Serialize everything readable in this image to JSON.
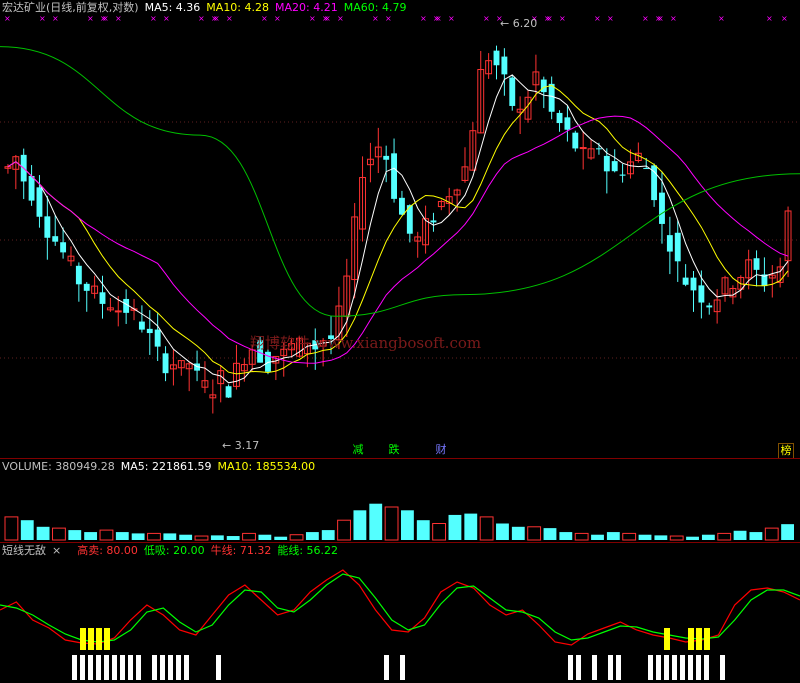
{
  "main_header": {
    "title": "宏达矿业(日线,前复权,对数)",
    "ma5_label": "MA5: 4.36",
    "ma10_label": "MA10: 4.28",
    "ma20_label": "MA20: 4.21",
    "ma60_label": "MA60: 4.79"
  },
  "vol_header": {
    "title": "VOLUME: 380949.28",
    "ma5_label": "MA5: 221861.59",
    "ma10_label": "MA10: 185534.00"
  },
  "ind_header": {
    "title": "短线无敌",
    "close_glyph": "×",
    "high_label": "高卖: 80.00",
    "low_label": "低吸: 20.00",
    "bull_label": "牛线: 71.32",
    "energy_label": "能线: 56.22"
  },
  "annotations": {
    "high": "6.20",
    "low": "3.17",
    "watermark": "翔博软件  www.xiangbosoft.com"
  },
  "tags": [
    {
      "text": "减",
      "color": "#00ff00"
    },
    {
      "text": "跌",
      "color": "#00ff00"
    },
    {
      "text": "财",
      "color": "#7777ff"
    },
    {
      "text": "榜",
      "color": "#ffff00"
    }
  ],
  "colors": {
    "up": "#ff3232",
    "down": "#54ffff",
    "ma5": "#ffffff",
    "ma10": "#ffff00",
    "ma20": "#ff00ff",
    "ma60": "#00c000",
    "bull": "#ff0000",
    "energy": "#00ff00",
    "high_signal": "#ffff00",
    "low_signal": "#ffffff"
  },
  "chart_data": {
    "type": "candlestick",
    "price_axis": {
      "min": 3.0,
      "max": 6.4,
      "scale": "log"
    },
    "price_series": [
      4.9,
      5.0,
      4.8,
      4.7,
      4.55,
      4.4,
      4.3,
      4.2,
      4.1,
      4.0,
      3.95,
      3.9,
      3.85,
      3.85,
      3.8,
      3.8,
      3.75,
      3.7,
      3.6,
      3.5,
      3.45,
      3.45,
      3.4,
      3.45,
      3.35,
      3.3,
      3.3,
      3.35,
      3.3,
      3.4,
      3.5,
      3.55,
      3.5,
      3.45,
      3.5,
      3.5,
      3.55,
      3.55,
      3.6,
      3.55,
      3.6,
      3.6,
      3.75,
      4.0,
      4.4,
      4.9,
      5.0,
      5.1,
      5.0,
      4.7,
      4.5,
      4.35,
      4.3,
      4.4,
      4.5,
      4.6,
      4.7,
      4.8,
      4.9,
      5.3,
      5.8,
      6.0,
      5.9,
      5.7,
      5.5,
      5.4,
      5.6,
      5.8,
      5.6,
      5.4,
      5.3,
      5.2,
      5.1,
      5.0,
      5.0,
      5.1,
      4.9,
      4.85,
      4.9,
      4.95,
      5.0,
      4.9,
      4.7,
      4.4,
      4.3,
      4.1,
      4.0,
      3.95,
      3.9,
      3.85,
      3.9,
      3.95,
      4.0,
      4.05,
      4.1,
      4.05,
      4.0,
      4.05,
      4.1,
      4.5
    ],
    "ma60_series": [
      6.1,
      5.2,
      3.75,
      3.9,
      4.85
    ],
    "ma60_at": [
      0,
      0.25,
      0.42,
      0.58,
      1.0
    ],
    "volume_series": [
      0.35,
      0.3,
      0.2,
      0.18,
      0.15,
      0.12,
      0.15,
      0.12,
      0.1,
      0.1,
      0.1,
      0.08,
      0.06,
      0.07,
      0.06,
      0.1,
      0.08,
      0.05,
      0.08,
      0.12,
      0.15,
      0.3,
      0.45,
      0.55,
      0.5,
      0.45,
      0.3,
      0.25,
      0.38,
      0.4,
      0.35,
      0.25,
      0.2,
      0.2,
      0.18,
      0.12,
      0.1,
      0.08,
      0.12,
      0.1,
      0.08,
      0.07,
      0.06,
      0.05,
      0.08,
      0.1,
      0.14,
      0.12,
      0.18,
      0.24
    ],
    "volume_axis": {
      "min": 0,
      "max": 1
    },
    "indicator_axis": {
      "min": 0,
      "max": 100,
      "high": 80,
      "low": 20
    },
    "bull_series": [
      50,
      58,
      40,
      32,
      20,
      17,
      16,
      22,
      40,
      55,
      45,
      30,
      25,
      45,
      65,
      75,
      60,
      45,
      50,
      68,
      80,
      90,
      75,
      50,
      30,
      28,
      42,
      68,
      78,
      72,
      55,
      45,
      50,
      35,
      18,
      15,
      26,
      32,
      38,
      30,
      25,
      22,
      18,
      20,
      25,
      55,
      70,
      72,
      68,
      60
    ],
    "energy_series": [
      55,
      52,
      45,
      35,
      26,
      20,
      18,
      20,
      30,
      48,
      52,
      38,
      28,
      35,
      55,
      70,
      68,
      52,
      48,
      60,
      75,
      86,
      82,
      62,
      40,
      30,
      35,
      56,
      72,
      74,
      62,
      50,
      48,
      42,
      28,
      20,
      22,
      28,
      34,
      33,
      28,
      25,
      22,
      21,
      23,
      40,
      60,
      70,
      70,
      64
    ],
    "high_signal_at": [
      0.1,
      0.11,
      0.12,
      0.13,
      0.83,
      0.86,
      0.87,
      0.88
    ],
    "low_signal_at": [
      0.09,
      0.1,
      0.11,
      0.12,
      0.13,
      0.14,
      0.15,
      0.16,
      0.17,
      0.19,
      0.2,
      0.21,
      0.22,
      0.23,
      0.27,
      0.48,
      0.5,
      0.71,
      0.72,
      0.74,
      0.76,
      0.77,
      0.81,
      0.82,
      0.83,
      0.84,
      0.85,
      0.86,
      0.87,
      0.88,
      0.9
    ]
  }
}
